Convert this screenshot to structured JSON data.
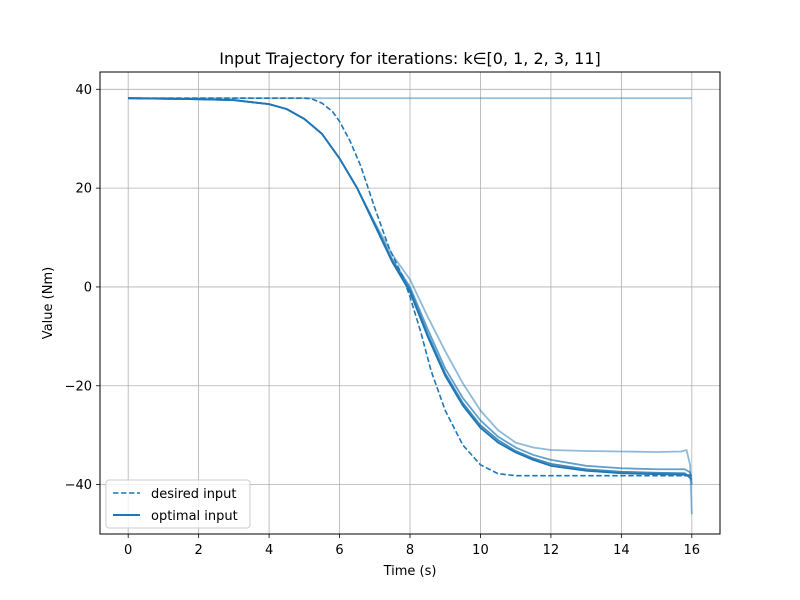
{
  "chart_data": {
    "type": "line",
    "title": "Input Trajectory for iterations: k∈[0, 1, 2, 3, 11]",
    "xlabel": "Time (s)",
    "ylabel": "Value (Nm)",
    "xlim": [
      -0.8,
      16.8
    ],
    "ylim": [
      -50,
      43.5
    ],
    "xticks": [
      0,
      2,
      4,
      6,
      8,
      10,
      12,
      14,
      16
    ],
    "xtick_labels": [
      "0",
      "2",
      "4",
      "6",
      "8",
      "10",
      "12",
      "14",
      "16"
    ],
    "yticks": [
      40,
      20,
      0,
      -20,
      -40
    ],
    "ytick_labels": [
      "40",
      "20",
      "0",
      "−20",
      "−40"
    ],
    "grid": true,
    "legend_position": "lower-left",
    "color": "#1f77b4",
    "legend": [
      {
        "label": "desired input",
        "style": "dashed"
      },
      {
        "label": "optimal input",
        "style": "solid"
      }
    ],
    "series": [
      {
        "name": "desired input",
        "style": "dashed",
        "opacity": 1,
        "x": [
          0,
          1,
          2,
          3,
          4,
          4.5,
          5,
          5.2,
          5.5,
          5.8,
          6,
          6.3,
          6.6,
          7,
          7.4,
          7.8,
          8,
          8.3,
          8.6,
          9,
          9.5,
          10,
          10.5,
          11,
          12,
          14,
          16
        ],
        "y": [
          38.2,
          38.2,
          38.2,
          38.2,
          38.2,
          38.2,
          38.2,
          38.1,
          37.2,
          35.5,
          33.5,
          29.5,
          24.5,
          16,
          8,
          2,
          -2,
          -9,
          -17,
          -25,
          -32,
          -36,
          -37.8,
          -38.2,
          -38.2,
          -38.2,
          -38.2
        ]
      },
      {
        "name": "optimal input",
        "style": "solid",
        "opacity": 1,
        "x": [
          0,
          1,
          2,
          3,
          4,
          4.5,
          5,
          5.5,
          6,
          6.5,
          7,
          7.5,
          8,
          8.5,
          9,
          9.5,
          10,
          10.5,
          11,
          11.5,
          12,
          13,
          14,
          15,
          15.8,
          16
        ],
        "y": [
          38.2,
          38.1,
          38,
          37.8,
          37,
          36,
          34,
          31,
          26,
          20,
          12.5,
          5,
          -1,
          -10,
          -18,
          -24,
          -28.5,
          -31.5,
          -33.5,
          -35,
          -36.2,
          -37.2,
          -37.7,
          -37.9,
          -38,
          -38.2
        ]
      },
      {
        "name": "",
        "style": "solid",
        "opacity": 0.45,
        "x": [
          0,
          2,
          4,
          6,
          8,
          10,
          12,
          14,
          16
        ],
        "y": [
          38.2,
          38.2,
          38.2,
          38.2,
          38.2,
          38.2,
          38.2,
          38.2,
          38.2
        ]
      },
      {
        "name": "",
        "style": "solid",
        "opacity": 0.5,
        "x": [
          0,
          1,
          2,
          3,
          4,
          4.5,
          5,
          5.5,
          6,
          6.5,
          7,
          7.5,
          8,
          8.5,
          9,
          9.5,
          10,
          10.5,
          11,
          11.5,
          12,
          13,
          14,
          15,
          15.7,
          15.85,
          15.95,
          16
        ],
        "y": [
          38.2,
          38.1,
          38,
          37.8,
          37,
          36,
          34,
          31,
          26,
          20,
          13,
          6.5,
          1.5,
          -6,
          -13,
          -19.5,
          -25,
          -29,
          -31.5,
          -32.5,
          -33,
          -33.2,
          -33.3,
          -33.4,
          -33.3,
          -33,
          -36,
          -46
        ]
      },
      {
        "name": "",
        "style": "solid",
        "opacity": 0.7,
        "x": [
          0,
          1,
          2,
          3,
          4,
          4.5,
          5,
          5.5,
          6,
          6.5,
          7,
          7.5,
          8,
          8.5,
          9,
          9.5,
          10,
          10.5,
          11,
          11.5,
          12,
          13,
          14,
          15,
          15.8,
          15.95,
          16
        ],
        "y": [
          38.2,
          38.1,
          38,
          37.8,
          37,
          36,
          34,
          31,
          26,
          20,
          12.8,
          5.5,
          0,
          -8.5,
          -16.5,
          -22.5,
          -27,
          -30.3,
          -32.5,
          -34,
          -35,
          -36.2,
          -36.7,
          -36.9,
          -36.9,
          -37.5,
          -40
        ]
      },
      {
        "name": "",
        "style": "solid",
        "opacity": 0.85,
        "x": [
          0,
          1,
          2,
          3,
          4,
          4.5,
          5,
          5.5,
          6,
          6.5,
          7,
          7.5,
          8,
          8.5,
          9,
          9.5,
          10,
          10.5,
          11,
          11.5,
          12,
          13,
          14,
          15,
          15.8,
          16
        ],
        "y": [
          38.2,
          38.1,
          38,
          37.8,
          37,
          36,
          34,
          31,
          26,
          20,
          12.6,
          5.2,
          -0.5,
          -9.5,
          -17.5,
          -23.5,
          -28,
          -31,
          -33.2,
          -34.7,
          -35.8,
          -36.9,
          -37.4,
          -37.6,
          -37.7,
          -39
        ]
      }
    ]
  }
}
